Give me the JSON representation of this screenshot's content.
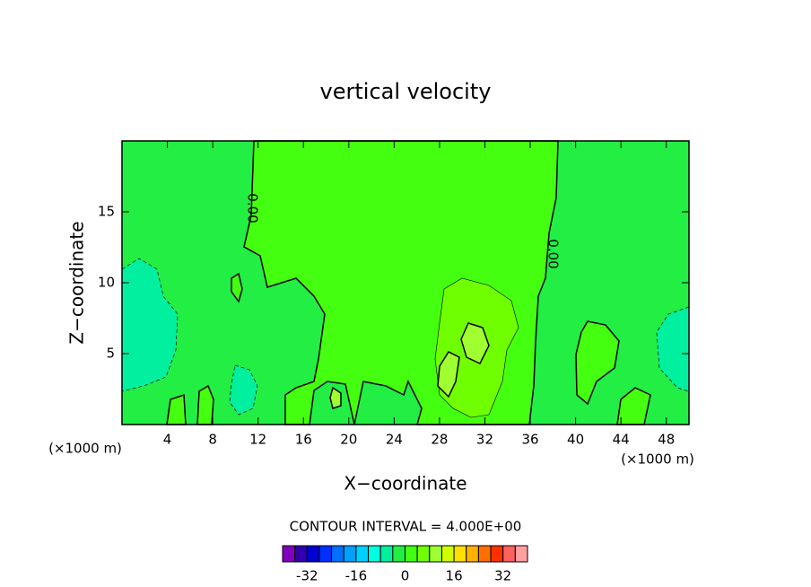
{
  "chart_data": {
    "type": "contour",
    "title": "vertical velocity",
    "xlabel": "X−coordinate",
    "ylabel": "Z−coordinate",
    "x_unit": "(×1000 m)",
    "contour_interval": "CONTOUR INTERVAL = 4.000E+00",
    "contour_labels": [
      "0.00",
      "0.00"
    ],
    "xlim": [
      0,
      50
    ],
    "xticks": [
      4,
      8,
      12,
      16,
      20,
      24,
      28,
      32,
      36,
      40,
      44,
      48
    ],
    "ylim": [
      0,
      20
    ],
    "yticks": [
      5,
      10,
      15
    ],
    "colorbar": {
      "levels": [
        -40,
        -36,
        -32,
        -28,
        -24,
        -20,
        -16,
        -12,
        -8,
        -4,
        0,
        4,
        8,
        12,
        16,
        20,
        24,
        28,
        32,
        36,
        40
      ],
      "colors": [
        "#8000c0",
        "#3000b0",
        "#0000d0",
        "#0030ff",
        "#0070ff",
        "#00a0ff",
        "#00d0ff",
        "#00ffe0",
        "#00f0a0",
        "#22ee44",
        "#44ff10",
        "#70ff00",
        "#a0ff30",
        "#d0ff00",
        "#ffe000",
        "#ffb000",
        "#ff7000",
        "#ff3000",
        "#ff6060",
        "#ffa0a0"
      ],
      "ticks": [
        -32,
        -16,
        0,
        16,
        32
      ]
    }
  }
}
